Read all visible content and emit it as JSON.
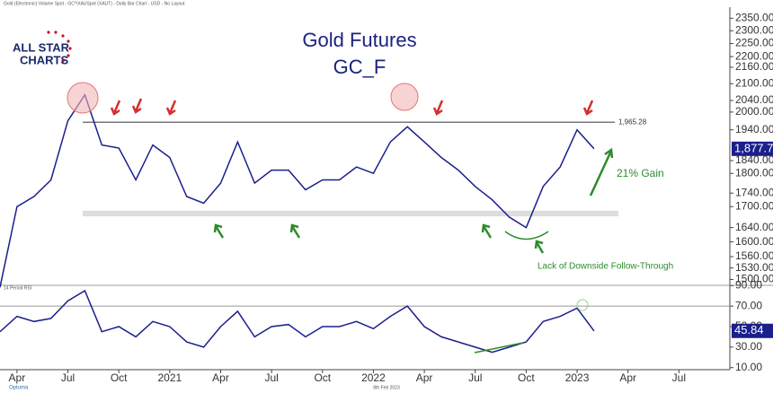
{
  "chart_data": {
    "type": "line",
    "header": "Gold (Electronic) Volume Spot - GC*/XAUSpot (XAUT) - Daily Bar Chart - USD - No Layout",
    "logo": [
      "ALL STAR",
      "CHARTS"
    ],
    "title": "Gold Futures",
    "subtitle": "GC_F",
    "log_scale": true,
    "x": [
      "2020-03",
      "2020-04",
      "2020-05",
      "2020-06",
      "2020-07",
      "2020-08",
      "2020-09",
      "2020-10",
      "2020-11",
      "2020-12",
      "2021-01",
      "2021-02",
      "2021-03",
      "2021-04",
      "2021-05",
      "2021-06",
      "2021-07",
      "2021-08",
      "2021-09",
      "2021-10",
      "2021-11",
      "2021-12",
      "2022-01",
      "2022-02",
      "2022-03",
      "2022-04",
      "2022-05",
      "2022-06",
      "2022-07",
      "2022-08",
      "2022-09",
      "2022-10",
      "2022-11",
      "2022-12",
      "2023-01",
      "2023-02"
    ],
    "xlim": [
      "2020-03",
      "2023-10"
    ],
    "xticks": [
      {
        "value": "2020-04",
        "label": "Apr"
      },
      {
        "value": "2020-07",
        "label": "Jul"
      },
      {
        "value": "2020-10",
        "label": "Oct"
      },
      {
        "value": "2021-01",
        "label": "2021"
      },
      {
        "value": "2021-04",
        "label": "Apr"
      },
      {
        "value": "2021-07",
        "label": "Jul"
      },
      {
        "value": "2021-10",
        "label": "Oct"
      },
      {
        "value": "2022-01",
        "label": "2022"
      },
      {
        "value": "2022-04",
        "label": "Apr"
      },
      {
        "value": "2022-07",
        "label": "Jul"
      },
      {
        "value": "2022-10",
        "label": "Oct"
      },
      {
        "value": "2023-01",
        "label": "2023"
      },
      {
        "value": "2023-04",
        "label": "Apr"
      },
      {
        "value": "2023-07",
        "label": "Jul"
      }
    ],
    "ylim": [
      1485,
      2395
    ],
    "yticks": [
      {
        "value": 1500,
        "label": "1500.00"
      },
      {
        "value": 1530,
        "label": "1530.00"
      },
      {
        "value": 1560,
        "label": "1560.00"
      },
      {
        "value": 1600,
        "label": "1600.00"
      },
      {
        "value": 1640,
        "label": "1640.00"
      },
      {
        "value": 1700,
        "label": "1700.00"
      },
      {
        "value": 1740,
        "label": "1740.00"
      },
      {
        "value": 1800,
        "label": "1800.00"
      },
      {
        "value": 1840,
        "label": "1840.00"
      },
      {
        "value": 1940,
        "label": "1940.00"
      },
      {
        "value": 2000,
        "label": "2000.00"
      },
      {
        "value": 2040,
        "label": "2040.00"
      },
      {
        "value": 2100,
        "label": "2100.00"
      },
      {
        "value": 2160,
        "label": "2160.00"
      },
      {
        "value": 2200,
        "label": "2200.00"
      },
      {
        "value": 2250,
        "label": "2250.00"
      },
      {
        "value": 2300,
        "label": "2300.00"
      },
      {
        "value": 2350,
        "label": "2350.00"
      }
    ],
    "y2lim": [
      8,
      92
    ],
    "y2ticks": [
      {
        "value": 10,
        "label": "10.00"
      },
      {
        "value": 30,
        "label": "30.00"
      },
      {
        "value": 50,
        "label": "50.00"
      },
      {
        "value": 70,
        "label": "70.00"
      },
      {
        "value": 90,
        "label": "90.00"
      }
    ],
    "series": [
      {
        "color": "#1a1f8c",
        "last_label": "1,877.7",
        "values": [
          1480,
          1700,
          1730,
          1780,
          1970,
          2060,
          1890,
          1880,
          1780,
          1890,
          1850,
          1730,
          1710,
          1770,
          1900,
          1770,
          1810,
          1810,
          1750,
          1780,
          1780,
          1820,
          1800,
          1900,
          1950,
          1900,
          1850,
          1810,
          1760,
          1720,
          1670,
          1640,
          1760,
          1820,
          1940,
          1877.7
        ]
      },
      {
        "name": "14 Period RSI",
        "axis": "y2",
        "color": "#1a1f8c",
        "last_label": "45.84",
        "values": [
          45,
          60,
          55,
          58,
          75,
          85,
          45,
          50,
          40,
          55,
          50,
          35,
          30,
          50,
          65,
          40,
          50,
          52,
          40,
          50,
          50,
          55,
          48,
          60,
          70,
          50,
          40,
          35,
          30,
          25,
          30,
          35,
          55,
          60,
          68,
          45.84
        ]
      }
    ],
    "hlines": [
      {
        "value": 1965.28,
        "label": "1,965.28"
      }
    ],
    "band": [
      1672,
      1688
    ],
    "y2hlines": [
      70
    ],
    "annotations": [
      "21% Gain",
      "Lack of Downside Follow-Through"
    ],
    "footer": [
      "Optuma",
      "8th Feb 2023"
    ]
  }
}
